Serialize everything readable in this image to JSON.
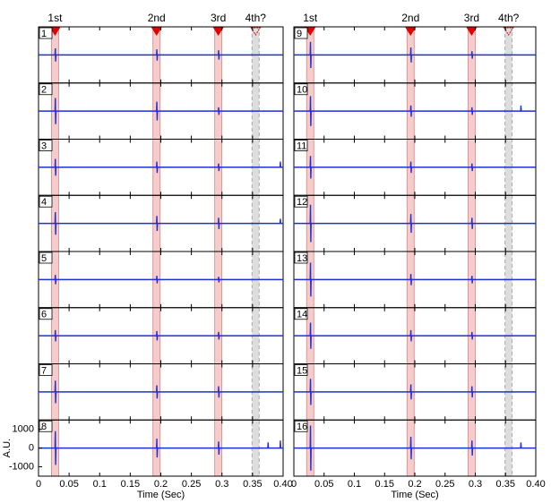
{
  "chart_data": {
    "type": "line",
    "xlabel": "Time (Sec)",
    "ylabel": "A.U.",
    "xlim": [
      0,
      0.4
    ],
    "xticks": [
      0,
      0.05,
      0.1,
      0.15,
      0.2,
      0.25,
      0.3,
      0.35,
      {
        "value": 0.4,
        "label": "0.40"
      }
    ],
    "ylim": [
      -1500,
      1500
    ],
    "yticks": [
      1000,
      0,
      -1000
    ],
    "color": "#1f2fd6",
    "events": [
      {
        "label": "1st",
        "x": 0.027
      },
      {
        "label": "2nd",
        "x": 0.193
      },
      {
        "label": "3rd",
        "x": 0.294
      },
      {
        "label": "4th?",
        "x": 0.355,
        "dashed": true
      }
    ],
    "x": [
      0,
      0.027,
      0.0275,
      0.028,
      0.0285,
      0.193,
      0.1935,
      0.194,
      0.1945,
      0.294,
      0.2945,
      0.295,
      0.2955,
      0.375,
      0.3755,
      0.376,
      0.395,
      0.3955,
      0.396,
      0.4
    ],
    "panels": [
      {
        "label": "1",
        "values": [
          0,
          0,
          350,
          -350,
          0,
          0,
          300,
          -300,
          0,
          0,
          250,
          -250,
          0,
          0,
          0,
          0,
          0,
          0,
          0,
          0
        ]
      },
      {
        "label": "2",
        "values": [
          0,
          0,
          700,
          -700,
          0,
          0,
          500,
          -500,
          0,
          0,
          200,
          -200,
          0,
          0,
          0,
          0,
          0,
          0,
          0,
          0
        ]
      },
      {
        "label": "3",
        "values": [
          0,
          0,
          450,
          -450,
          0,
          0,
          300,
          -300,
          0,
          0,
          200,
          -200,
          0,
          0,
          0,
          0,
          0,
          300,
          0,
          0
        ]
      },
      {
        "label": "4",
        "values": [
          0,
          0,
          600,
          -600,
          0,
          0,
          400,
          -400,
          0,
          0,
          300,
          -300,
          0,
          0,
          0,
          0,
          0,
          250,
          0,
          0
        ]
      },
      {
        "label": "5",
        "values": [
          0,
          0,
          250,
          -250,
          0,
          0,
          200,
          -200,
          0,
          0,
          150,
          -150,
          0,
          0,
          0,
          0,
          0,
          0,
          0,
          0
        ]
      },
      {
        "label": "6",
        "values": [
          0,
          0,
          300,
          -300,
          0,
          0,
          250,
          -250,
          0,
          0,
          200,
          -200,
          0,
          0,
          0,
          0,
          0,
          0,
          0,
          0
        ]
      },
      {
        "label": "7",
        "values": [
          0,
          0,
          600,
          -600,
          0,
          0,
          350,
          -350,
          0,
          0,
          300,
          -300,
          0,
          0,
          0,
          0,
          0,
          0,
          0,
          0
        ]
      },
      {
        "label": "8",
        "values": [
          0,
          0,
          900,
          -900,
          0,
          0,
          500,
          -500,
          0,
          0,
          350,
          -350,
          0,
          0,
          300,
          0,
          0,
          400,
          0,
          0
        ]
      },
      {
        "label": "9",
        "values": [
          0,
          0,
          700,
          -700,
          0,
          0,
          400,
          -400,
          0,
          0,
          200,
          -200,
          0,
          0,
          0,
          0,
          0,
          0,
          0,
          0
        ]
      },
      {
        "label": "10",
        "values": [
          0,
          0,
          800,
          -800,
          0,
          0,
          300,
          -300,
          0,
          0,
          200,
          -200,
          0,
          0,
          300,
          0,
          0,
          0,
          0,
          0
        ]
      },
      {
        "label": "11",
        "values": [
          0,
          0,
          600,
          -600,
          0,
          0,
          300,
          -300,
          0,
          0,
          200,
          -200,
          0,
          0,
          0,
          0,
          0,
          0,
          0,
          0
        ]
      },
      {
        "label": "12",
        "values": [
          0,
          0,
          1000,
          -1000,
          0,
          0,
          500,
          -500,
          0,
          0,
          300,
          -300,
          0,
          0,
          0,
          0,
          0,
          0,
          0,
          0
        ]
      },
      {
        "label": "13",
        "values": [
          0,
          0,
          900,
          -900,
          0,
          0,
          300,
          -300,
          0,
          0,
          200,
          -200,
          0,
          0,
          0,
          0,
          0,
          0,
          0,
          0
        ]
      },
      {
        "label": "14",
        "values": [
          0,
          0,
          700,
          -700,
          0,
          0,
          300,
          -300,
          0,
          0,
          200,
          -200,
          0,
          0,
          0,
          0,
          0,
          0,
          0,
          0
        ]
      },
      {
        "label": "15",
        "values": [
          0,
          0,
          700,
          -700,
          0,
          0,
          400,
          -400,
          0,
          0,
          300,
          -300,
          0,
          0,
          0,
          0,
          0,
          0,
          0,
          0
        ]
      },
      {
        "label": "16",
        "values": [
          0,
          0,
          1200,
          -1200,
          0,
          0,
          600,
          -600,
          0,
          0,
          400,
          -400,
          0,
          0,
          300,
          0,
          0,
          0,
          0,
          0
        ]
      }
    ]
  }
}
